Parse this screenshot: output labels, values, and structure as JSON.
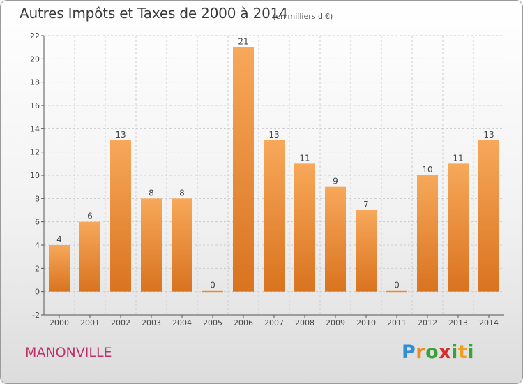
{
  "header": {
    "title": "Autres Impôts et Taxes de 2000 à 2014",
    "subtitle": "(en milliers d'€)"
  },
  "footer": {
    "city": "MANONVILLE",
    "logo": {
      "p": "P",
      "r": "r",
      "o": "o",
      "x": "x",
      "i": "i",
      "t": "t",
      "i2": "i"
    }
  },
  "colors": {
    "bar_top": "#f7a85a",
    "bar_bottom": "#d9731f",
    "grid": "#cccccc",
    "axis": "#555555"
  },
  "chart_data": {
    "type": "bar",
    "title": "Autres Impôts et Taxes de 2000 à 2014",
    "subtitle": "(en milliers d'€)",
    "categories": [
      "2000",
      "2001",
      "2002",
      "2003",
      "2004",
      "2005",
      "2006",
      "2007",
      "2008",
      "2009",
      "2010",
      "2011",
      "2012",
      "2013",
      "2014"
    ],
    "values": [
      4,
      6,
      13,
      8,
      8,
      0,
      21,
      13,
      11,
      9,
      7,
      0,
      10,
      11,
      13
    ],
    "ylim": [
      -2,
      22
    ],
    "yticks": [
      -2,
      0,
      2,
      4,
      6,
      8,
      10,
      12,
      14,
      16,
      18,
      20,
      22
    ],
    "grid": "horizontal dashed",
    "xlabel": "",
    "ylabel": ""
  }
}
